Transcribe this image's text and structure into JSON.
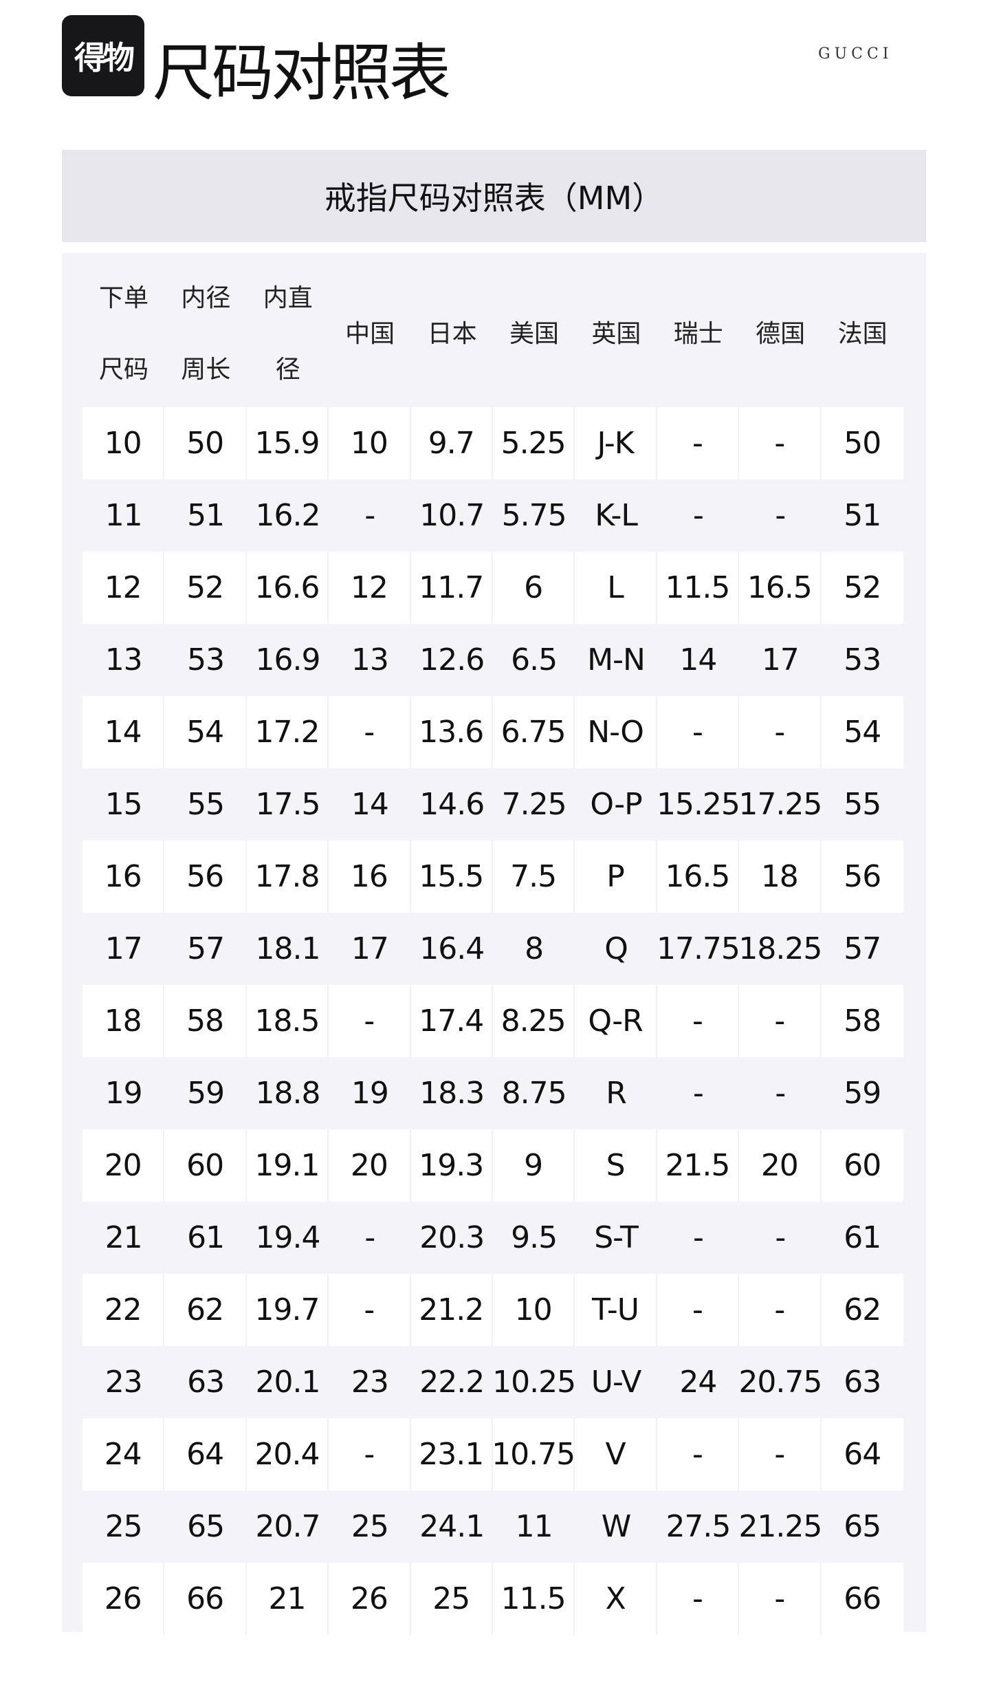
{
  "header": {
    "logo_text": "得物",
    "title": "尺码对照表",
    "brand": "GUCCI"
  },
  "banner": {
    "title": "戒指尺码对照表（MM）"
  },
  "table": {
    "columns": [
      {
        "line1": "下单",
        "line2": "尺码"
      },
      {
        "line1": "内径",
        "line2": "周长"
      },
      {
        "line1": "内直",
        "line2": "径"
      },
      {
        "label": "中国"
      },
      {
        "label": "日本"
      },
      {
        "label": "美国"
      },
      {
        "label": "英国"
      },
      {
        "label": "瑞士"
      },
      {
        "label": "德国"
      },
      {
        "label": "法国"
      }
    ],
    "rows": [
      [
        "10",
        "50",
        "15.9",
        "10",
        "9.7",
        "5.25",
        "J-K",
        "-",
        "-",
        "50"
      ],
      [
        "11",
        "51",
        "16.2",
        "-",
        "10.7",
        "5.75",
        "K-L",
        "-",
        "-",
        "51"
      ],
      [
        "12",
        "52",
        "16.6",
        "12",
        "11.7",
        "6",
        "L",
        "11.5",
        "16.5",
        "52"
      ],
      [
        "13",
        "53",
        "16.9",
        "13",
        "12.6",
        "6.5",
        "M-N",
        "14",
        "17",
        "53"
      ],
      [
        "14",
        "54",
        "17.2",
        "-",
        "13.6",
        "6.75",
        "N-O",
        "-",
        "-",
        "54"
      ],
      [
        "15",
        "55",
        "17.5",
        "14",
        "14.6",
        "7.25",
        "O-P",
        "15.25",
        "17.25",
        "55"
      ],
      [
        "16",
        "56",
        "17.8",
        "16",
        "15.5",
        "7.5",
        "P",
        "16.5",
        "18",
        "56"
      ],
      [
        "17",
        "57",
        "18.1",
        "17",
        "16.4",
        "8",
        "Q",
        "17.75",
        "18.25",
        "57"
      ],
      [
        "18",
        "58",
        "18.5",
        "-",
        "17.4",
        "8.25",
        "Q-R",
        "-",
        "-",
        "58"
      ],
      [
        "19",
        "59",
        "18.8",
        "19",
        "18.3",
        "8.75",
        "R",
        "-",
        "-",
        "59"
      ],
      [
        "20",
        "60",
        "19.1",
        "20",
        "19.3",
        "9",
        "S",
        "21.5",
        "20",
        "60"
      ],
      [
        "21",
        "61",
        "19.4",
        "-",
        "20.3",
        "9.5",
        "S-T",
        "-",
        "-",
        "61"
      ],
      [
        "22",
        "62",
        "19.7",
        "-",
        "21.2",
        "10",
        "T-U",
        "-",
        "-",
        "62"
      ],
      [
        "23",
        "63",
        "20.1",
        "23",
        "22.2",
        "10.25",
        "U-V",
        "24",
        "20.75",
        "63"
      ],
      [
        "24",
        "64",
        "20.4",
        "-",
        "23.1",
        "10.75",
        "V",
        "-",
        "-",
        "64"
      ],
      [
        "25",
        "65",
        "20.7",
        "25",
        "24.1",
        "11",
        "W",
        "27.5",
        "21.25",
        "65"
      ],
      [
        "26",
        "66",
        "21",
        "26",
        "25",
        "11.5",
        "X",
        "-",
        "-",
        "66"
      ]
    ]
  }
}
